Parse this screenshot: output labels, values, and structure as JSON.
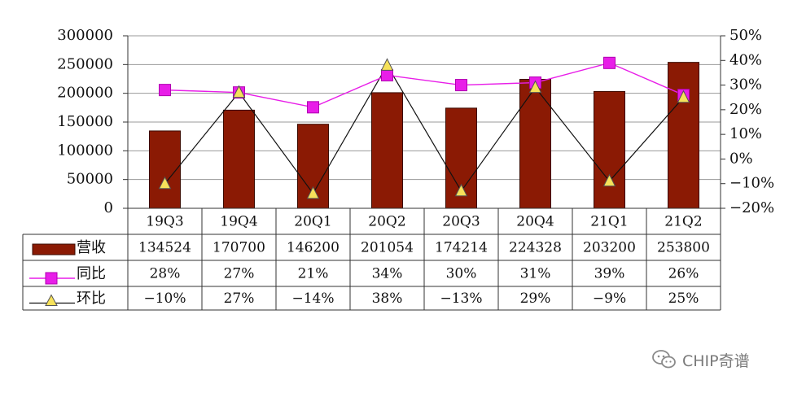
{
  "chart_data": {
    "type": "bar",
    "categories": [
      "19Q3",
      "19Q4",
      "20Q1",
      "20Q2",
      "20Q3",
      "20Q4",
      "21Q1",
      "21Q2"
    ],
    "series": [
      {
        "name": "营收",
        "kind": "bar",
        "axis": "left",
        "color": "#8b1a04",
        "values": [
          134524,
          170700,
          146200,
          201054,
          174214,
          224328,
          203200,
          253800
        ],
        "labels": [
          "134524",
          "170700",
          "146200",
          "201054",
          "174214",
          "224328",
          "203200",
          "253800"
        ]
      },
      {
        "name": "同比",
        "kind": "line",
        "axis": "right",
        "marker": "square",
        "color": "#e81ee8",
        "values": [
          28,
          27,
          21,
          34,
          30,
          31,
          39,
          26
        ],
        "labels": [
          "28%",
          "27%",
          "21%",
          "34%",
          "30%",
          "31%",
          "39%",
          "26%"
        ]
      },
      {
        "name": "环比",
        "kind": "line",
        "axis": "right",
        "marker": "triangle",
        "color": "#f6e15a",
        "values": [
          -10,
          27,
          -14,
          38,
          -13,
          29,
          -9,
          25
        ],
        "labels": [
          "−10%",
          "27%",
          "−14%",
          "38%",
          "−13%",
          "29%",
          "−9%",
          "25%"
        ]
      }
    ],
    "y_left": {
      "range": [
        0,
        300000
      ],
      "ticks": [
        "300000",
        "250000",
        "200000",
        "150000",
        "100000",
        "50000",
        "0"
      ]
    },
    "y_right": {
      "range": [
        -20,
        50
      ],
      "ticks": [
        "50%",
        "40%",
        "30%",
        "20%",
        "10%",
        "0%",
        "−10%",
        "−20%"
      ]
    },
    "grid": true,
    "legend": "data-table-bottom"
  },
  "watermark": {
    "text": "CHIP奇谱"
  },
  "colors": {
    "bar": "#8b1a04",
    "bar_edge": "#3a0a00",
    "yoy": "#e81ee8",
    "qoq_fill": "#f6e15a",
    "qoq_line": "#111111",
    "grid": "#9a9a9a"
  },
  "icons": {
    "watermark": "wechat-icon"
  }
}
